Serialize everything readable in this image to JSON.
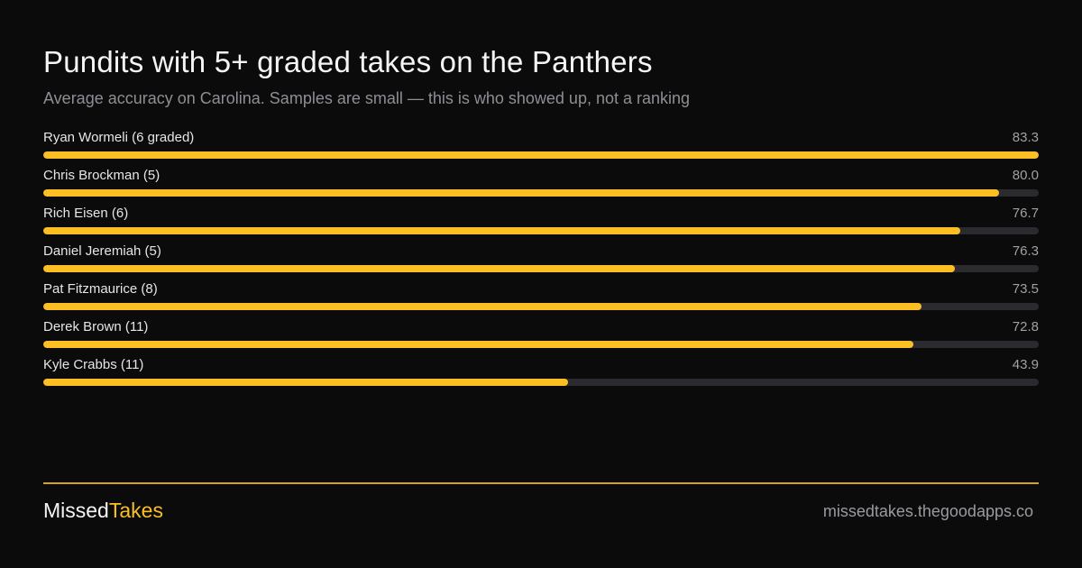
{
  "header": {
    "title": "Pundits with 5+ graded takes on the Panthers",
    "subtitle": "Average accuracy on Carolina. Samples are small — this is who showed up, not a ranking"
  },
  "colors": {
    "background": "#0b0b0b",
    "accent": "#fbbf24",
    "track": "#2a2a2f",
    "muted_text": "#8e8e95"
  },
  "chart_data": {
    "type": "bar",
    "orientation": "horizontal",
    "title": "Pundits with 5+ graded takes on the Panthers",
    "subtitle": "Average accuracy on Carolina. Samples are small — this is who showed up, not a ranking",
    "xlim": [
      0,
      83.3
    ],
    "grid": false,
    "legend": "none",
    "categories": [
      "Ryan Wormeli (6 graded)",
      "Chris Brockman (5)",
      "Rich Eisen (6)",
      "Daniel Jeremiah (5)",
      "Pat Fitzmaurice (8)",
      "Derek Brown (11)",
      "Kyle Crabbs (11)"
    ],
    "values": [
      83.3,
      80.0,
      76.7,
      76.3,
      73.5,
      72.8,
      43.9
    ],
    "value_labels": [
      "83.3",
      "80.0",
      "76.7",
      "76.3",
      "73.5",
      "72.8",
      "43.9"
    ]
  },
  "footer": {
    "brand_part1": "Missed",
    "brand_part2": "Takes",
    "site": "missedtakes.thegoodapps.co"
  }
}
